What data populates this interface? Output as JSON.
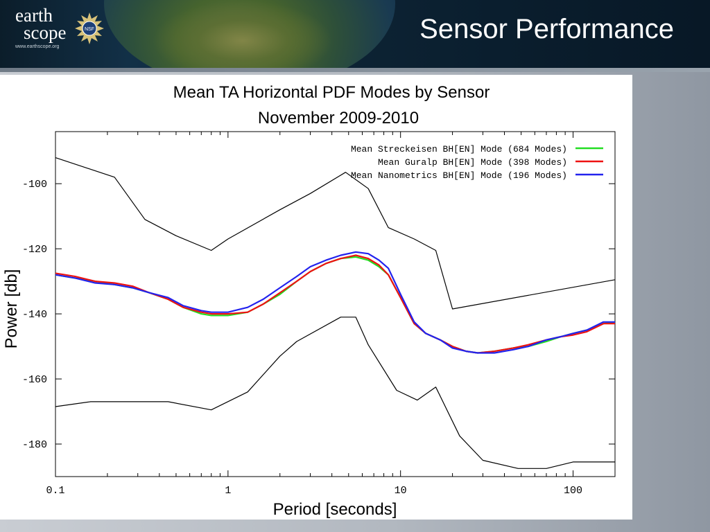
{
  "header": {
    "logo_line1": "earth",
    "logo_line2": "scope",
    "logo_sub": "www.earthscope.org",
    "nsf_label": "NSF",
    "title": "Sensor Performance"
  },
  "colors": {
    "streckeisen": "#22dd22",
    "guralp": "#ee1111",
    "nanometrics": "#2222ee",
    "bounds": "#000000"
  },
  "chart_data": {
    "type": "line",
    "title": "Mean TA Horizontal PDF Modes by Sensor",
    "subtitle": "November 2009-2010",
    "xlabel": "Period [seconds]",
    "ylabel": "Power [db]",
    "xscale": "log",
    "xlim": [
      0.1,
      175
    ],
    "ylim": [
      -190,
      -84
    ],
    "xticks": [
      0.1,
      1,
      10,
      100
    ],
    "xtick_labels": [
      "0.1",
      "1",
      "10",
      "100"
    ],
    "yticks": [
      -100,
      -120,
      -140,
      -160,
      -180
    ],
    "ytick_labels": [
      "-100",
      "-120",
      "-140",
      "-160",
      "-180"
    ],
    "legend_position": "top-right",
    "series": [
      {
        "name": "Mean Streckeisen BH[EN] Mode (684 Modes)",
        "color": "#22dd22",
        "x": [
          0.1,
          0.13,
          0.17,
          0.22,
          0.28,
          0.35,
          0.45,
          0.55,
          0.7,
          0.8,
          1.0,
          1.3,
          1.6,
          2.0,
          2.5,
          3.0,
          3.7,
          4.5,
          5.5,
          6.5,
          7.5,
          8.5,
          10,
          12,
          14,
          17,
          20,
          24,
          28,
          35,
          45,
          55,
          70,
          85,
          100,
          120,
          150,
          175
        ],
        "y": [
          -128,
          -129,
          -130,
          -131,
          -132,
          -133.5,
          -135.5,
          -138,
          -140,
          -140.5,
          -140.5,
          -139.5,
          -137,
          -134,
          -130,
          -127,
          -124.5,
          -123,
          -122.5,
          -123.5,
          -125.5,
          -128,
          -135,
          -143,
          -146,
          -148,
          -150,
          -151.5,
          -152,
          -151.5,
          -150.5,
          -150,
          -148.5,
          -147,
          -146,
          -145,
          -143,
          -142.5
        ]
      },
      {
        "name": "Mean Guralp BH[EN] Mode (398 Modes)",
        "color": "#ee1111",
        "x": [
          0.1,
          0.13,
          0.17,
          0.22,
          0.28,
          0.35,
          0.45,
          0.55,
          0.7,
          0.8,
          1.0,
          1.3,
          1.6,
          2.0,
          2.5,
          3.0,
          3.7,
          4.5,
          5.5,
          6.5,
          7.5,
          8.5,
          10,
          12,
          14,
          17,
          20,
          24,
          28,
          35,
          45,
          55,
          70,
          85,
          100,
          120,
          150,
          175
        ],
        "y": [
          -127.5,
          -128.5,
          -130,
          -130.5,
          -131.5,
          -133.5,
          -135.5,
          -138,
          -139.5,
          -140,
          -140,
          -139.5,
          -137,
          -133.5,
          -130,
          -127,
          -124.5,
          -123,
          -122,
          -123,
          -125,
          -128,
          -135,
          -143,
          -146,
          -148,
          -150,
          -151.5,
          -152,
          -151.5,
          -150.5,
          -149.5,
          -148,
          -147,
          -146.5,
          -145.5,
          -143,
          -143
        ]
      },
      {
        "name": "Mean Nanometrics BH[EN] Mode (196 Modes)",
        "color": "#2222ee",
        "x": [
          0.1,
          0.13,
          0.17,
          0.22,
          0.28,
          0.35,
          0.45,
          0.55,
          0.7,
          0.8,
          1.0,
          1.3,
          1.6,
          2.0,
          2.5,
          3.0,
          3.7,
          4.5,
          5.5,
          6.5,
          7.5,
          8.5,
          10,
          12,
          14,
          17,
          20,
          24,
          28,
          35,
          45,
          55,
          70,
          85,
          100,
          120,
          150,
          175
        ],
        "y": [
          -128,
          -129,
          -130.5,
          -131,
          -132,
          -133.5,
          -135,
          -137.5,
          -139,
          -139.5,
          -139.5,
          -138,
          -135.5,
          -132,
          -128.5,
          -125.5,
          -123.5,
          -122,
          -121,
          -121.5,
          -123.5,
          -126,
          -134,
          -142.5,
          -146,
          -148,
          -150.5,
          -151.5,
          -152,
          -152,
          -151,
          -150,
          -148,
          -147,
          -146,
          -145,
          -142.5,
          -142.5
        ]
      },
      {
        "name": "",
        "color": "#000000",
        "x": [
          0.1,
          0.22,
          0.33,
          0.5,
          0.8,
          1.0,
          2.0,
          3.0,
          4.8,
          6.5,
          8.5,
          12,
          16,
          20,
          175
        ],
        "y": [
          -92,
          -98,
          -111,
          -116,
          -120.5,
          -117,
          -108,
          -103,
          -96.5,
          -101.5,
          -113.5,
          -117,
          -120.5,
          -138.5,
          -129.5
        ]
      },
      {
        "name": "",
        "color": "#000000",
        "x": [
          0.1,
          0.16,
          0.33,
          0.45,
          0.8,
          1.3,
          2.0,
          2.5,
          4.5,
          5.5,
          6.5,
          9.5,
          12.5,
          16,
          22,
          30,
          48,
          70,
          100,
          175
        ],
        "y": [
          -168.5,
          -167,
          -167,
          -167,
          -169.5,
          -164,
          -153,
          -148.5,
          -141,
          -141,
          -149.5,
          -163.5,
          -166.5,
          -162.5,
          -177.5,
          -185,
          -187.5,
          -187.5,
          -185.5,
          -185.5
        ]
      }
    ]
  }
}
